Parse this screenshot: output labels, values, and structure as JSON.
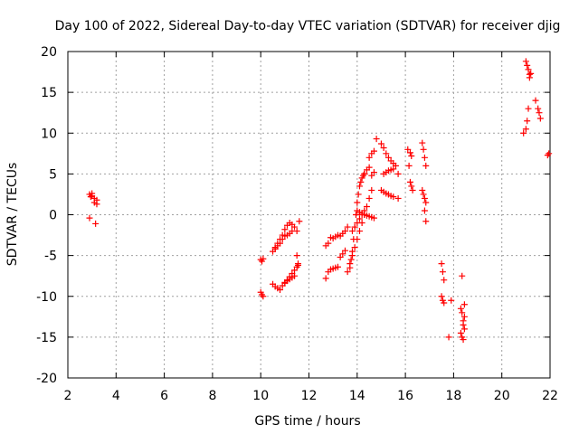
{
  "chart_data": {
    "type": "scatter",
    "title": "Day 100 of 2022, Sidereal Day-to-day VTEC variation (SDTVAR) for receiver djig",
    "xlabel": "GPS time / hours",
    "ylabel": "SDTVAR / TECUs",
    "xlim": [
      2,
      22
    ],
    "ylim": [
      -20,
      20
    ],
    "xticks": [
      "2",
      "4",
      "6",
      "8",
      "10",
      "12",
      "14",
      "16",
      "18",
      "20",
      "22"
    ],
    "yticks": [
      "20",
      "15",
      "10",
      "5",
      "0",
      "-5",
      "-10",
      "-15",
      "-20"
    ],
    "grid": true,
    "marker": "+",
    "color": "#ff0000",
    "series": [
      {
        "name": "SDTVAR",
        "x": [
          2.9,
          3.0,
          3.1,
          3.2,
          2.9,
          3.0,
          3.1,
          3.2,
          3.15,
          2.95,
          10.0,
          10.05,
          10.1,
          10.0,
          10.05,
          10.1,
          10.5,
          10.6,
          10.7,
          10.8,
          10.9,
          11.0,
          11.1,
          11.2,
          11.3,
          10.5,
          10.6,
          10.7,
          10.8,
          10.9,
          11.0,
          11.1,
          11.2,
          11.3,
          11.4,
          11.5,
          11.55,
          10.6,
          10.7,
          10.8,
          10.9,
          11.0,
          11.1,
          11.2,
          11.3,
          11.4,
          11.5,
          11.6,
          11.0,
          11.1,
          11.2,
          11.3,
          11.4,
          11.5,
          11.55,
          12.7,
          12.8,
          12.9,
          13.0,
          13.1,
          13.2,
          13.3,
          13.4,
          13.5,
          13.6,
          12.7,
          12.8,
          12.9,
          13.0,
          13.1,
          13.2,
          13.3,
          13.4,
          13.5,
          13.6,
          13.7,
          13.8,
          13.9,
          14.0,
          14.1,
          14.2,
          14.3,
          13.7,
          13.75,
          13.8,
          13.85,
          13.9,
          13.95,
          14.0,
          14.05,
          14.1,
          14.15,
          14.2,
          14.25,
          14.3,
          13.8,
          13.9,
          14.0,
          14.1,
          14.2,
          14.3,
          14.4,
          14.5,
          14.6,
          14.0,
          14.1,
          14.2,
          14.3,
          14.4,
          14.5,
          14.6,
          14.7,
          14.3,
          14.4,
          14.5,
          14.6,
          14.7,
          14.5,
          14.6,
          14.7,
          14.8,
          15.0,
          15.1,
          15.2,
          15.3,
          15.4,
          15.5,
          15.6,
          15.0,
          15.1,
          15.2,
          15.3,
          15.4,
          15.5,
          15.7,
          15.1,
          15.2,
          15.3,
          15.4,
          15.5,
          15.7,
          16.1,
          16.2,
          16.25,
          16.15,
          16.2,
          16.25,
          16.3,
          16.7,
          16.75,
          16.8,
          16.85,
          16.7,
          16.75,
          16.8,
          16.85,
          16.8,
          16.85,
          17.5,
          17.55,
          17.6,
          17.5,
          17.55,
          17.6,
          17.8,
          17.9,
          18.3,
          18.35,
          18.4,
          18.45,
          18.3,
          18.35,
          18.4,
          18.45,
          18.35,
          18.4,
          18.45,
          20.9,
          21.0,
          21.05,
          21.1,
          21.15,
          21.2,
          21.0,
          21.05,
          21.1,
          21.15,
          21.4,
          21.5,
          21.55,
          21.6,
          21.9,
          21.95
        ],
        "y": [
          2.5,
          2.3,
          2.0,
          1.8,
          -0.4,
          2.6,
          1.5,
          1.3,
          -1.1,
          2.2,
          -5.5,
          -5.7,
          -5.4,
          -9.5,
          -9.8,
          -10.0,
          -4.5,
          -4.0,
          -3.8,
          -3.5,
          -3.0,
          -2.6,
          -2.5,
          -2.3,
          -2.0,
          -8.5,
          -8.8,
          -9.0,
          -9.2,
          -8.7,
          -8.4,
          -8.0,
          -7.6,
          -7.2,
          -6.8,
          -6.4,
          -6.0,
          -4.2,
          -3.5,
          -3.0,
          -2.5,
          -1.8,
          -1.3,
          -1.0,
          -1.2,
          -1.5,
          -2.0,
          -0.8,
          -8.3,
          -8.1,
          -7.9,
          -7.7,
          -7.5,
          -5.0,
          -6.2,
          -3.8,
          -3.5,
          -2.8,
          -2.9,
          -2.7,
          -2.5,
          -2.6,
          -2.3,
          -2.0,
          -1.5,
          -7.8,
          -7.0,
          -6.7,
          -6.6,
          -6.5,
          -6.4,
          -5.2,
          -4.8,
          -4.4,
          -7.0,
          -6.0,
          -5.0,
          -4.0,
          -3.0,
          -2.0,
          -1.0,
          0.0,
          -6.5,
          -5.5,
          -4.5,
          -3.0,
          -1.5,
          0.0,
          1.5,
          2.5,
          3.5,
          4.0,
          4.5,
          4.8,
          5.0,
          -2.0,
          -1.5,
          -1.0,
          -0.5,
          0.0,
          0.5,
          1.0,
          2.0,
          3.0,
          0.5,
          0.3,
          0.2,
          0.0,
          -0.1,
          -0.2,
          -0.3,
          -0.4,
          5.0,
          5.5,
          5.8,
          4.8,
          5.2,
          7.0,
          7.5,
          7.8,
          9.3,
          8.7,
          8.2,
          7.5,
          7.0,
          6.6,
          6.3,
          6.0,
          3.0,
          2.8,
          2.6,
          2.5,
          2.3,
          2.2,
          2.0,
          5.0,
          5.2,
          5.4,
          5.5,
          5.6,
          5.0,
          8.0,
          7.6,
          7.2,
          6.0,
          4.0,
          3.5,
          3.0,
          8.8,
          8.0,
          7.0,
          6.0,
          3.0,
          2.5,
          2.0,
          1.5,
          0.5,
          -0.8,
          -6.0,
          -7.0,
          -8.0,
          -10.0,
          -10.5,
          -10.8,
          -15.0,
          -10.5,
          -11.5,
          -12.0,
          -13.0,
          -14.0,
          -14.5,
          -15.0,
          -15.3,
          -11.0,
          -7.5,
          -13.5,
          -12.5,
          10.0,
          10.5,
          11.5,
          13.0,
          16.8,
          17.3,
          18.8,
          18.3,
          17.8,
          17.2,
          14.0,
          13.0,
          12.5,
          11.8,
          7.3,
          7.5
        ]
      }
    ]
  }
}
